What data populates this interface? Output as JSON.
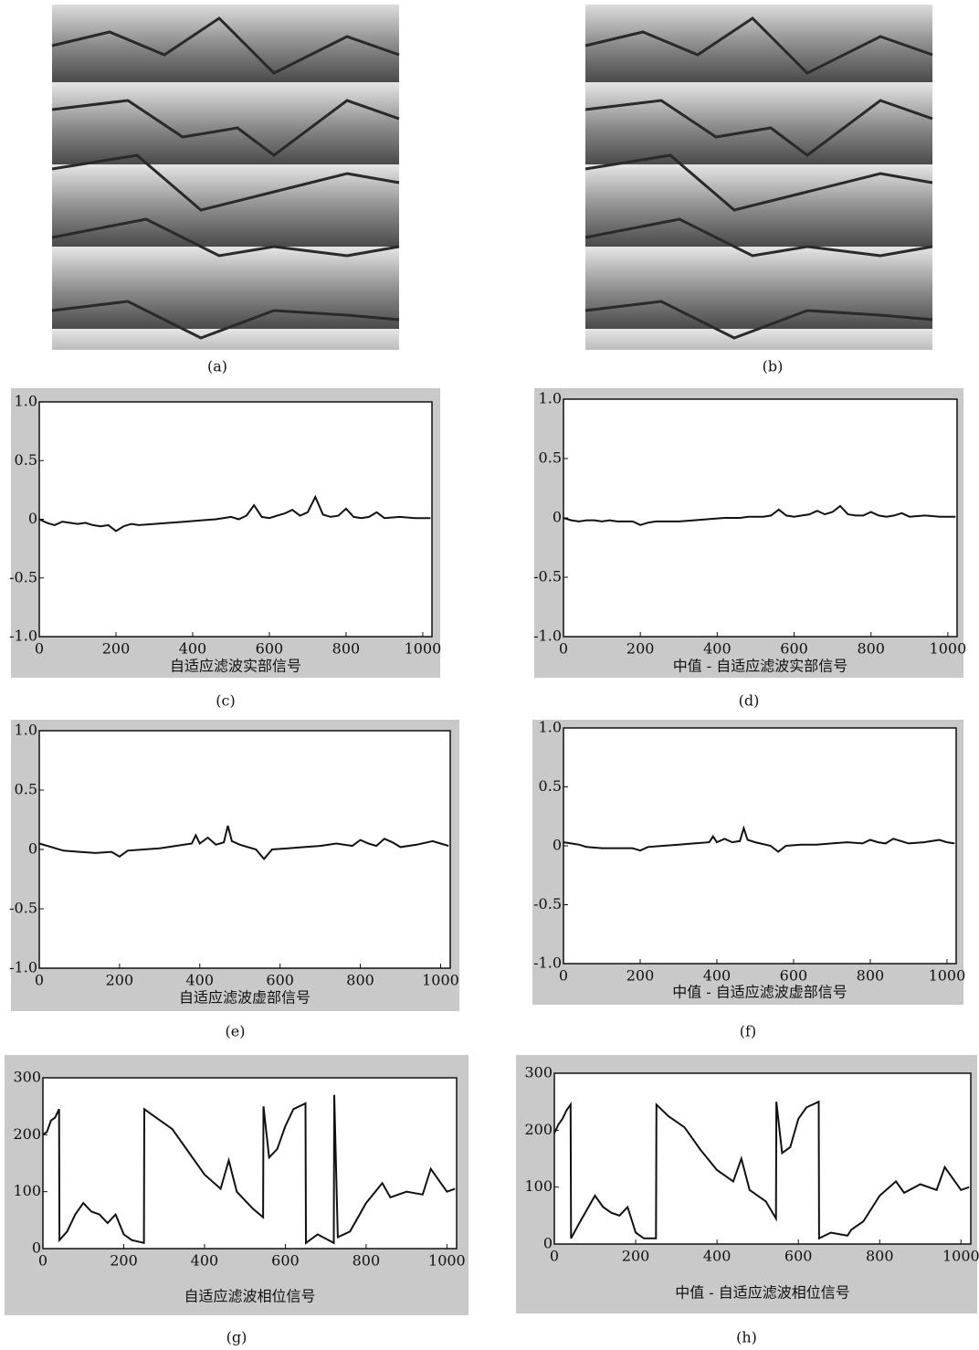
{
  "images": [
    {
      "caption": "(a)"
    },
    {
      "caption": "(b)"
    }
  ],
  "chart_data": [
    {
      "type": "line",
      "caption": "(c)",
      "xlabel": "自适应滤波实部信号",
      "xlim": [
        0,
        1024
      ],
      "ylim": [
        -1,
        1
      ],
      "xticks": [
        0,
        200,
        400,
        600,
        800,
        1000
      ],
      "yticks": [
        {
          "value": -1,
          "label": "-1.0"
        },
        -0.5,
        0,
        0.5,
        {
          "value": 1,
          "label": "1.0"
        }
      ],
      "color": "#111111",
      "x": [
        0,
        20,
        40,
        60,
        80,
        100,
        120,
        140,
        160,
        180,
        200,
        220,
        240,
        260,
        300,
        340,
        380,
        420,
        460,
        480,
        500,
        520,
        540,
        560,
        580,
        600,
        620,
        640,
        660,
        680,
        700,
        720,
        740,
        760,
        780,
        800,
        820,
        840,
        860,
        880,
        900,
        940,
        980,
        1020
      ],
      "values": [
        0,
        -0.03,
        -0.05,
        -0.02,
        -0.03,
        -0.04,
        -0.03,
        -0.05,
        -0.06,
        -0.05,
        -0.1,
        -0.06,
        -0.04,
        -0.05,
        -0.04,
        -0.03,
        -0.02,
        -0.01,
        0,
        0.01,
        0.02,
        0.0,
        0.03,
        0.12,
        0.02,
        0.01,
        0.03,
        0.05,
        0.08,
        0.03,
        0.06,
        0.19,
        0.04,
        0.02,
        0.03,
        0.09,
        0.02,
        0.01,
        0.02,
        0.06,
        0.01,
        0.02,
        0.01,
        0.01
      ]
    },
    {
      "type": "line",
      "caption": "(d)",
      "xlabel": "中值 - 自适应滤波实部信号",
      "xlim": [
        0,
        1024
      ],
      "ylim": [
        -1,
        1
      ],
      "xticks": [
        0,
        200,
        400,
        600,
        800,
        1000
      ],
      "yticks": [
        {
          "value": -1,
          "label": "-1.0"
        },
        -0.5,
        0,
        0.5,
        {
          "value": 1,
          "label": "1.0"
        }
      ],
      "color": "#111111",
      "x": [
        0,
        20,
        40,
        60,
        80,
        100,
        120,
        140,
        160,
        180,
        200,
        220,
        240,
        260,
        300,
        340,
        380,
        420,
        460,
        480,
        500,
        520,
        540,
        560,
        580,
        600,
        620,
        640,
        660,
        680,
        700,
        720,
        740,
        760,
        780,
        800,
        820,
        840,
        860,
        880,
        900,
        940,
        980,
        1020
      ],
      "values": [
        0,
        -0.02,
        -0.03,
        -0.02,
        -0.02,
        -0.03,
        -0.02,
        -0.03,
        -0.03,
        -0.03,
        -0.06,
        -0.04,
        -0.03,
        -0.03,
        -0.03,
        -0.02,
        -0.01,
        0,
        0,
        0.01,
        0.01,
        0.01,
        0.02,
        0.07,
        0.02,
        0.01,
        0.02,
        0.03,
        0.06,
        0.03,
        0.05,
        0.1,
        0.03,
        0.02,
        0.02,
        0.05,
        0.02,
        0.01,
        0.02,
        0.04,
        0.01,
        0.02,
        0.01,
        0.01
      ]
    },
    {
      "type": "line",
      "caption": "(e)",
      "xlabel": "自适应滤波虚部信号",
      "xlim": [
        0,
        1024
      ],
      "ylim": [
        -1,
        1
      ],
      "xticks": [
        0,
        200,
        400,
        600,
        800,
        1000
      ],
      "yticks": [
        {
          "value": -1,
          "label": "-1.0"
        },
        -0.5,
        0,
        0.5,
        {
          "value": 1,
          "label": "1.0"
        }
      ],
      "color": "#111111",
      "x": [
        0,
        20,
        40,
        60,
        100,
        140,
        180,
        200,
        220,
        260,
        300,
        340,
        380,
        390,
        400,
        420,
        440,
        460,
        470,
        480,
        500,
        540,
        560,
        580,
        620,
        660,
        700,
        740,
        780,
        800,
        820,
        840,
        860,
        880,
        900,
        940,
        980,
        1000,
        1020
      ],
      "values": [
        0.05,
        0.03,
        0.01,
        -0.01,
        -0.02,
        -0.03,
        -0.02,
        -0.06,
        -0.01,
        0,
        0.01,
        0.03,
        0.05,
        0.12,
        0.05,
        0.1,
        0.04,
        0.06,
        0.2,
        0.07,
        0.04,
        0.0,
        -0.08,
        0.0,
        0.01,
        0.02,
        0.03,
        0.05,
        0.03,
        0.08,
        0.05,
        0.03,
        0.09,
        0.06,
        0.02,
        0.04,
        0.07,
        0.05,
        0.03
      ]
    },
    {
      "type": "line",
      "caption": "(f)",
      "xlabel": "中值 - 自适应滤波虚部信号",
      "xlim": [
        0,
        1024
      ],
      "ylim": [
        -1,
        1
      ],
      "xticks": [
        0,
        200,
        400,
        600,
        800,
        1000
      ],
      "yticks": [
        {
          "value": -1,
          "label": "-1.0"
        },
        -0.5,
        0,
        0.5,
        {
          "value": 1,
          "label": "1.0"
        }
      ],
      "color": "#111111",
      "x": [
        0,
        20,
        40,
        60,
        100,
        140,
        180,
        200,
        220,
        260,
        300,
        340,
        380,
        390,
        400,
        420,
        440,
        460,
        470,
        480,
        500,
        540,
        560,
        580,
        620,
        660,
        700,
        740,
        780,
        800,
        820,
        840,
        860,
        880,
        900,
        940,
        980,
        1000,
        1020
      ],
      "values": [
        0.03,
        0.02,
        0.01,
        -0.01,
        -0.02,
        -0.02,
        -0.02,
        -0.04,
        -0.01,
        0,
        0.01,
        0.02,
        0.03,
        0.08,
        0.03,
        0.06,
        0.03,
        0.04,
        0.15,
        0.05,
        0.03,
        0,
        -0.05,
        0,
        0.01,
        0.01,
        0.02,
        0.03,
        0.02,
        0.05,
        0.03,
        0.02,
        0.06,
        0.04,
        0.02,
        0.03,
        0.05,
        0.03,
        0.02
      ]
    },
    {
      "type": "line",
      "caption": "(g)",
      "xlabel": "自适应滤波相位信号",
      "xlim": [
        0,
        1024
      ],
      "ylim": [
        0,
        300
      ],
      "xticks": [
        0,
        200,
        400,
        600,
        800,
        1000
      ],
      "yticks": [
        0,
        100,
        200,
        300
      ],
      "color": "#111111",
      "x": [
        0,
        10,
        20,
        30,
        40,
        41,
        60,
        80,
        100,
        120,
        140,
        160,
        180,
        200,
        220,
        250,
        251,
        280,
        320,
        360,
        400,
        440,
        460,
        480,
        520,
        545,
        546,
        560,
        580,
        600,
        620,
        650,
        651,
        680,
        720,
        721,
        730,
        760,
        800,
        840,
        860,
        900,
        940,
        960,
        1000,
        1020
      ],
      "values": [
        200,
        205,
        225,
        230,
        245,
        15,
        30,
        60,
        80,
        65,
        60,
        45,
        60,
        25,
        15,
        10,
        245,
        230,
        210,
        170,
        130,
        105,
        155,
        100,
        70,
        55,
        250,
        160,
        175,
        215,
        245,
        255,
        10,
        25,
        10,
        270,
        20,
        30,
        80,
        115,
        90,
        100,
        95,
        140,
        100,
        105
      ]
    },
    {
      "type": "line",
      "caption": "(h)",
      "xlabel": "中值 - 自适应滤波相位信号",
      "xlim": [
        0,
        1024
      ],
      "ylim": [
        0,
        300
      ],
      "xticks": [
        0,
        200,
        400,
        600,
        800,
        1000
      ],
      "yticks": [
        0,
        100,
        200,
        300
      ],
      "color": "#111111",
      "x": [
        0,
        10,
        20,
        30,
        40,
        41,
        60,
        80,
        100,
        120,
        140,
        160,
        180,
        200,
        220,
        250,
        251,
        280,
        320,
        360,
        400,
        440,
        460,
        480,
        520,
        545,
        546,
        560,
        580,
        600,
        620,
        650,
        651,
        680,
        720,
        721,
        730,
        760,
        800,
        840,
        860,
        900,
        940,
        960,
        1000,
        1020
      ],
      "values": [
        195,
        210,
        220,
        235,
        245,
        10,
        35,
        60,
        85,
        65,
        55,
        50,
        65,
        20,
        10,
        10,
        245,
        225,
        205,
        165,
        130,
        110,
        150,
        95,
        75,
        45,
        250,
        160,
        170,
        220,
        240,
        250,
        10,
        20,
        15,
        15,
        25,
        40,
        85,
        110,
        90,
        105,
        95,
        135,
        95,
        100
      ]
    }
  ]
}
